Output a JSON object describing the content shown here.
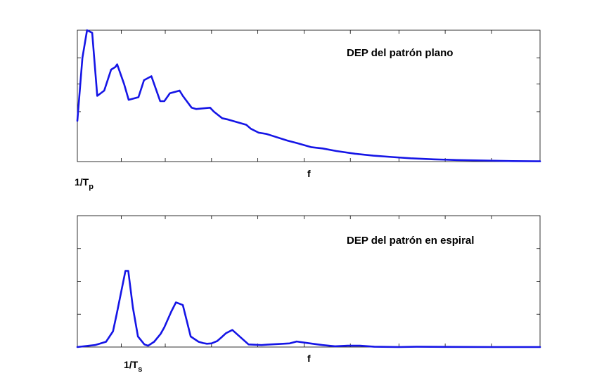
{
  "chart_data": [
    {
      "type": "line",
      "annotation": "DEP del patrón plano",
      "x_marker": {
        "text": "1/T",
        "sub": "p"
      },
      "xlabel": "f",
      "xlim": [
        0,
        1
      ],
      "ylim": [
        0,
        1
      ],
      "grid": false,
      "color": "#1515e6",
      "x": [
        0.0,
        0.011,
        0.021,
        0.032,
        0.043,
        0.058,
        0.073,
        0.082,
        0.086,
        0.101,
        0.111,
        0.132,
        0.144,
        0.16,
        0.179,
        0.188,
        0.2,
        0.221,
        0.228,
        0.247,
        0.257,
        0.287,
        0.295,
        0.313,
        0.326,
        0.365,
        0.375,
        0.392,
        0.409,
        0.454,
        0.475,
        0.505,
        0.53,
        0.56,
        0.6,
        0.64,
        0.68,
        0.72,
        0.77,
        0.82,
        0.88,
        0.94,
        1.0
      ],
      "y": [
        0.31,
        0.79,
        1.0,
        0.98,
        0.5,
        0.54,
        0.7,
        0.72,
        0.74,
        0.59,
        0.47,
        0.49,
        0.62,
        0.65,
        0.46,
        0.46,
        0.52,
        0.54,
        0.5,
        0.41,
        0.4,
        0.41,
        0.38,
        0.33,
        0.32,
        0.28,
        0.25,
        0.22,
        0.21,
        0.16,
        0.14,
        0.11,
        0.1,
        0.08,
        0.06,
        0.045,
        0.035,
        0.025,
        0.017,
        0.012,
        0.008,
        0.004,
        0.002
      ]
    },
    {
      "type": "line",
      "annotation": "DEP del patrón en espiral",
      "x_marker": {
        "text": "1/T",
        "sub": "s"
      },
      "xlabel": "f",
      "xlim": [
        0,
        1
      ],
      "ylim": [
        0,
        1
      ],
      "grid": false,
      "color": "#1515e6",
      "x": [
        0.0,
        0.038,
        0.062,
        0.077,
        0.085,
        0.104,
        0.11,
        0.12,
        0.131,
        0.145,
        0.153,
        0.166,
        0.18,
        0.188,
        0.203,
        0.213,
        0.228,
        0.245,
        0.262,
        0.272,
        0.28,
        0.29,
        0.302,
        0.311,
        0.321,
        0.335,
        0.37,
        0.398,
        0.417,
        0.459,
        0.474,
        0.503,
        0.53,
        0.557,
        0.584,
        0.611,
        0.642,
        0.695,
        0.733,
        0.8,
        0.9,
        1.0
      ],
      "y": [
        0.0,
        0.015,
        0.04,
        0.12,
        0.25,
        0.58,
        0.58,
        0.3,
        0.08,
        0.02,
        0.01,
        0.04,
        0.1,
        0.15,
        0.27,
        0.34,
        0.32,
        0.08,
        0.04,
        0.03,
        0.025,
        0.028,
        0.045,
        0.072,
        0.105,
        0.13,
        0.02,
        0.015,
        0.02,
        0.028,
        0.042,
        0.028,
        0.015,
        0.006,
        0.01,
        0.01,
        0.002,
        0.0,
        0.002,
        0.001,
        0.0,
        0.0
      ]
    }
  ]
}
